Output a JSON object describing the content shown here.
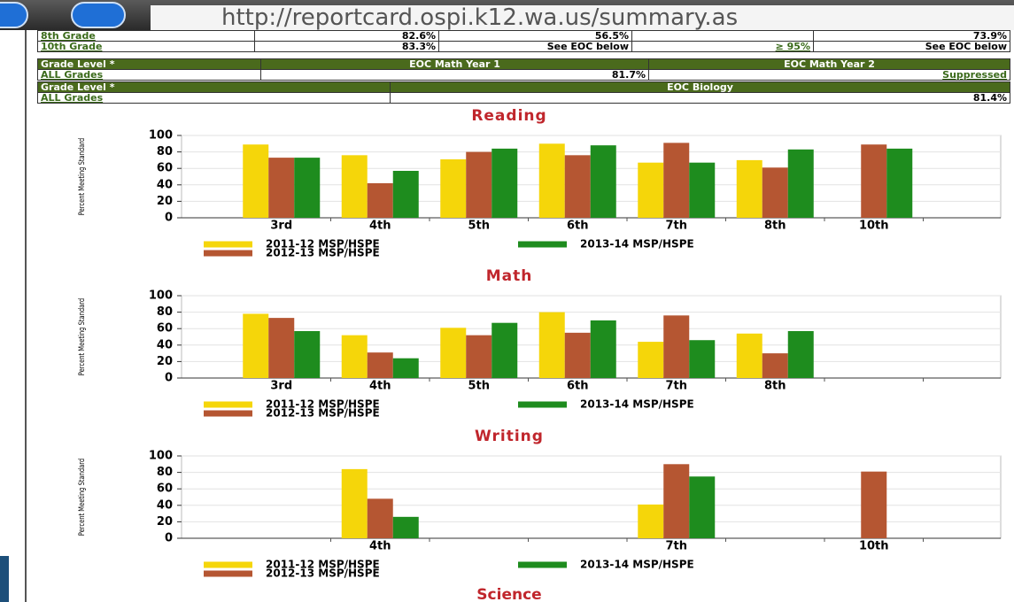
{
  "browser": {
    "url": "http://reportcard.ospi.k12.wa.us/summary.as"
  },
  "tables": [
    {
      "rows": [
        [
          "8th Grade",
          "82.6%",
          "56.5%",
          "",
          "73.9%"
        ],
        [
          "10th Grade",
          "83.3%",
          "See EOC below",
          "≥ 95%",
          "See EOC below"
        ]
      ]
    },
    {
      "header": [
        "Grade Level *",
        "EOC Math Year 1",
        "EOC Math Year 2"
      ],
      "rows": [
        [
          "ALL Grades",
          "81.7%",
          "Suppressed"
        ]
      ]
    },
    {
      "header": [
        "Grade Level *",
        "EOC Biology"
      ],
      "rows": [
        [
          "ALL Grades",
          "81.4%"
        ]
      ]
    }
  ],
  "next_section": "Science",
  "chart_data": [
    {
      "type": "bar",
      "title": "Reading",
      "ylabel": "Percent Meeting Standard",
      "categories": [
        "3rd",
        "4th",
        "5th",
        "6th",
        "7th",
        "8th",
        "10th"
      ],
      "series": [
        {
          "name": "2011-12 MSP/HSPE",
          "color": "#f5d60a",
          "values": [
            89,
            76,
            71,
            90,
            67,
            70,
            null
          ]
        },
        {
          "name": "2012-13 MSP/HSPE",
          "color": "#b55632",
          "values": [
            73,
            42,
            80,
            76,
            91,
            61,
            89
          ]
        },
        {
          "name": "2013-14 MSP/HSPE",
          "color": "#1e8c1e",
          "values": [
            73,
            57,
            84,
            88,
            67,
            83,
            84
          ]
        }
      ],
      "ylim": [
        0,
        100
      ],
      "yticks": [
        0,
        20,
        40,
        60,
        80,
        100
      ],
      "grid": true
    },
    {
      "type": "bar",
      "title": "Math",
      "ylabel": "Percent Meeting Standard",
      "categories": [
        "3rd",
        "4th",
        "5th",
        "6th",
        "7th",
        "8th",
        null
      ],
      "series": [
        {
          "name": "2011-12 MSP/HSPE",
          "color": "#f5d60a",
          "values": [
            78,
            52,
            61,
            80,
            44,
            54,
            null
          ]
        },
        {
          "name": "2012-13 MSP/HSPE",
          "color": "#b55632",
          "values": [
            73,
            31,
            52,
            55,
            76,
            30,
            null
          ]
        },
        {
          "name": "2013-14 MSP/HSPE",
          "color": "#1e8c1e",
          "values": [
            57,
            24,
            67,
            70,
            46,
            57,
            null
          ]
        }
      ],
      "ylim": [
        0,
        100
      ],
      "yticks": [
        0,
        20,
        40,
        60,
        80,
        100
      ],
      "grid": true
    },
    {
      "type": "bar",
      "title": "Writing",
      "ylabel": "Percent Meeting Standard",
      "categories": [
        null,
        "4th",
        null,
        null,
        "7th",
        null,
        "10th"
      ],
      "series": [
        {
          "name": "2011-12 MSP/HSPE",
          "color": "#f5d60a",
          "values": [
            null,
            84,
            null,
            null,
            41,
            null,
            null
          ]
        },
        {
          "name": "2012-13 MSP/HSPE",
          "color": "#b55632",
          "values": [
            null,
            48,
            null,
            null,
            90,
            null,
            81
          ]
        },
        {
          "name": "2013-14 MSP/HSPE",
          "color": "#1e8c1e",
          "values": [
            null,
            26,
            null,
            null,
            75,
            null,
            null
          ]
        }
      ],
      "ylim": [
        0,
        100
      ],
      "yticks": [
        0,
        20,
        40,
        60,
        80,
        100
      ],
      "grid": true
    }
  ]
}
